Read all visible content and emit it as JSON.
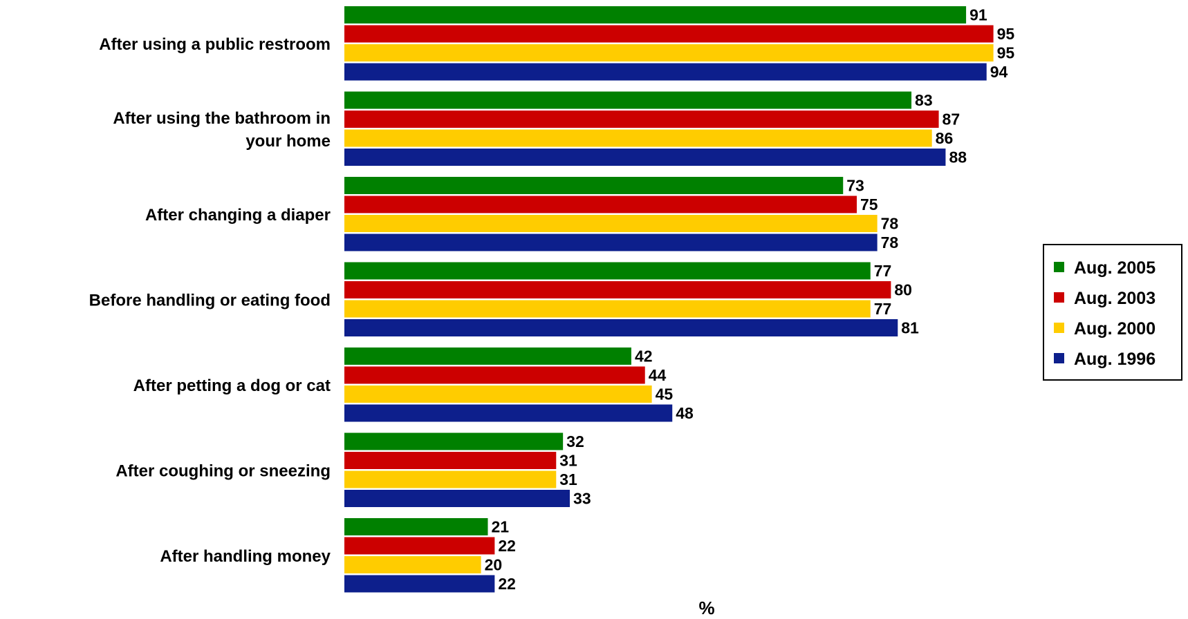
{
  "chart_data": {
    "type": "bar",
    "orientation": "horizontal",
    "xlabel": "%",
    "xlim": [
      0,
      100
    ],
    "grid": false,
    "legend_position": "right",
    "categories": [
      [
        "After using a public restroom"
      ],
      [
        "After using the bathroom in",
        "your home"
      ],
      [
        "After changing a diaper"
      ],
      [
        "Before handling or eating food"
      ],
      [
        "After petting a dog or cat"
      ],
      [
        "After coughing or sneezing"
      ],
      [
        "After handling money"
      ]
    ],
    "series": [
      {
        "name": "Aug. 2005",
        "color": "#008000",
        "values": [
          91,
          83,
          73,
          77,
          42,
          32,
          21
        ]
      },
      {
        "name": "Aug. 2003",
        "color": "#cc0000",
        "values": [
          95,
          87,
          75,
          80,
          44,
          31,
          22
        ]
      },
      {
        "name": "Aug. 2000",
        "color": "#ffcc00",
        "values": [
          95,
          86,
          78,
          77,
          45,
          31,
          20
        ]
      },
      {
        "name": "Aug. 1996",
        "color": "#0d1f8c",
        "values": [
          94,
          88,
          78,
          81,
          48,
          33,
          22
        ]
      }
    ]
  }
}
